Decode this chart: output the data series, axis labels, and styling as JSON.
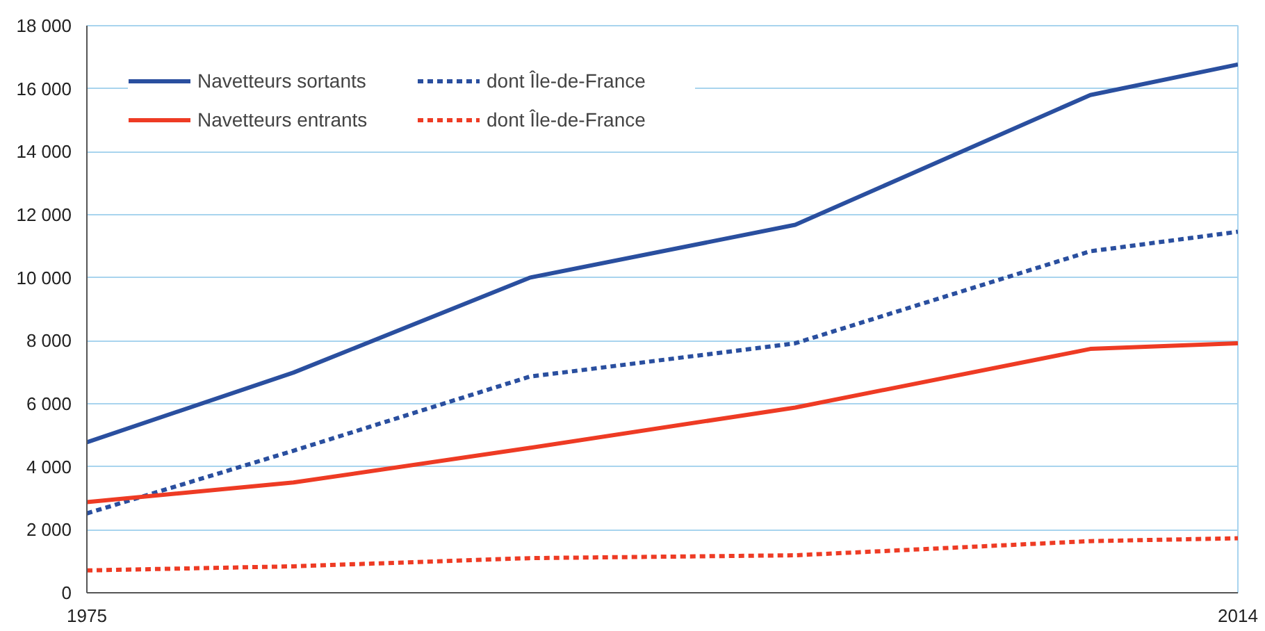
{
  "chart_data": {
    "type": "line",
    "x": [
      1975,
      1982,
      1990,
      1999,
      2009,
      2014
    ],
    "xlim": [
      1975,
      2014
    ],
    "xticks": [
      1975,
      2014
    ],
    "ylim": [
      0,
      18000
    ],
    "yticks": [
      {
        "value": 0,
        "label": "0"
      },
      {
        "value": 2000,
        "label": "2 000"
      },
      {
        "value": 4000,
        "label": "4 000"
      },
      {
        "value": 6000,
        "label": "6 000"
      },
      {
        "value": 8000,
        "label": "8 000"
      },
      {
        "value": 10000,
        "label": "10 000"
      },
      {
        "value": 12000,
        "label": "12 000"
      },
      {
        "value": 14000,
        "label": "14 000"
      },
      {
        "value": 16000,
        "label": "16 000"
      },
      {
        "value": 18000,
        "label": "18 000"
      }
    ],
    "grid": "y",
    "legend": "top left",
    "marker": "none",
    "series": [
      {
        "name": "Navetteurs sortants",
        "color": "#2a4f9f",
        "line_style": "solid",
        "values": [
          4780,
          6990,
          10000,
          11680,
          15800,
          16770
        ]
      },
      {
        "name": "dont Île-de-France",
        "color": "#2a4f9f",
        "line_style": "dotted",
        "values": [
          2520,
          4510,
          6860,
          7920,
          10840,
          11460
        ]
      },
      {
        "name": "Navetteurs entrants",
        "color": "#ee3b24",
        "line_style": "solid",
        "values": [
          2880,
          3500,
          4600,
          5880,
          7740,
          7920
        ]
      },
      {
        "name": "dont Île-de-France",
        "color": "#ee3b24",
        "line_style": "dotted",
        "values": [
          710,
          840,
          1100,
          1190,
          1640,
          1730
        ]
      }
    ]
  }
}
